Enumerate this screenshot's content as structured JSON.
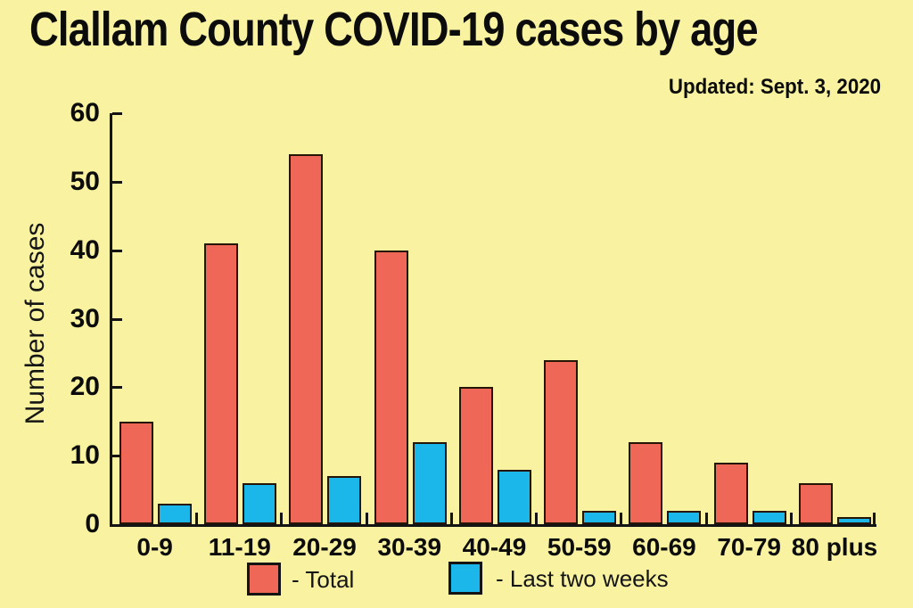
{
  "title": "Clallam County COVID-19 cases by age",
  "updated": "Updated: Sept. 3, 2020",
  "colors": {
    "background": "#F8F2A1",
    "total": "#EE6757",
    "recent": "#1BB7EA",
    "outline": "#241505",
    "axis": "#141414",
    "text": "#0C0C0C"
  },
  "chart_data": {
    "type": "bar",
    "title": "Clallam County COVID-19 cases by age",
    "subtitle": "Updated: Sept. 3, 2020",
    "categories": [
      "0-9",
      "11-19",
      "20-29",
      "30-39",
      "40-49",
      "50-59",
      "60-69",
      "70-79",
      "80 plus"
    ],
    "series": [
      {
        "name": "Total",
        "color": "#EE6757",
        "values": [
          15,
          41,
          54,
          40,
          20,
          24,
          12,
          9,
          6
        ]
      },
      {
        "name": "Last two weeks",
        "color": "#1BB7EA",
        "values": [
          3,
          6,
          7,
          12,
          8,
          2,
          2,
          2,
          1
        ]
      }
    ],
    "xlabel": "",
    "ylabel": "Number of cases",
    "ylim": [
      0,
      60
    ],
    "yticks": [
      0,
      10,
      20,
      30,
      40,
      50,
      60
    ],
    "grid": false,
    "legend": {
      "position": "bottom",
      "items": [
        {
          "label": "- Total",
          "color": "#EE6757"
        },
        {
          "label": "- Last two weeks",
          "color": "#1BB7EA"
        }
      ]
    }
  }
}
